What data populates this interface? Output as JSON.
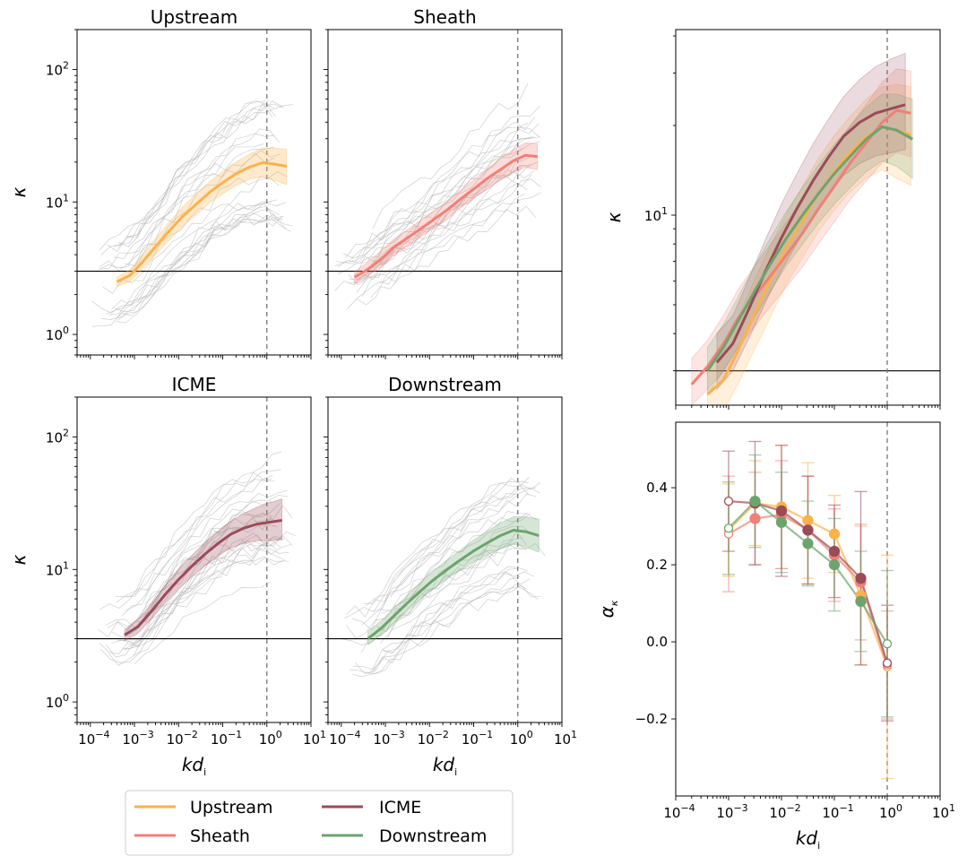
{
  "colors": {
    "Upstream": "#fdb14a",
    "Sheath": "#ef8078",
    "ICME": "#9a4b58",
    "Downstream": "#6ba46c",
    "grid": "#bbbbbb"
  },
  "legend": {
    "entries": [
      "Upstream",
      "Sheath",
      "ICME",
      "Downstream"
    ]
  },
  "chart_data": [
    {
      "type": "line",
      "panel": "top-left",
      "title": "Upstream",
      "ylabel": "κ",
      "xlabel": "",
      "xscale": "log",
      "yscale": "log",
      "xlim": [
        5e-05,
        10
      ],
      "ylim": [
        0.7,
        200
      ],
      "yticks": [
        {
          "v": 1,
          "base": "10",
          "exp": "0"
        },
        {
          "v": 10,
          "base": "10",
          "exp": "1"
        },
        {
          "v": 100,
          "base": "10",
          "exp": "2"
        }
      ],
      "xticks": [],
      "hline": 3,
      "vline": 1,
      "series": [
        {
          "name": "Upstream",
          "x": [
            0.0004,
            0.0008,
            0.0015,
            0.003,
            0.006,
            0.012,
            0.025,
            0.05,
            0.1,
            0.2,
            0.4,
            0.8,
            1.5,
            2.8
          ],
          "y": [
            2.5,
            2.8,
            3.5,
            4.6,
            6.0,
            7.7,
            9.6,
            11.8,
            14.0,
            16.3,
            18.3,
            19.8,
            19.3,
            18.6
          ],
          "band": [
            [
              2.3,
              2.7
            ],
            [
              2.5,
              3.1
            ],
            [
              3.1,
              4.0
            ],
            [
              4.0,
              5.3
            ],
            [
              5.1,
              7.0
            ],
            [
              6.5,
              9.1
            ],
            [
              8.0,
              11.5
            ],
            [
              9.8,
              14.2
            ],
            [
              11.5,
              17
            ],
            [
              13.3,
              20
            ],
            [
              14.8,
              23
            ],
            [
              15.5,
              25.5
            ],
            [
              14.5,
              25.5
            ],
            [
              13.5,
              25
            ]
          ]
        }
      ]
    },
    {
      "type": "line",
      "panel": "top-middle",
      "title": "Sheath",
      "ylabel": "",
      "xlabel": "",
      "xscale": "log",
      "yscale": "log",
      "xlim": [
        5e-05,
        10
      ],
      "ylim": [
        0.7,
        200
      ],
      "yticks": [],
      "xticks": [],
      "hline": 3,
      "vline": 1,
      "series": [
        {
          "name": "Sheath",
          "x": [
            0.0002,
            0.0004,
            0.0008,
            0.0015,
            0.003,
            0.006,
            0.012,
            0.025,
            0.05,
            0.1,
            0.2,
            0.4,
            0.8,
            1.5,
            2.8
          ],
          "y": [
            2.7,
            3.1,
            3.7,
            4.5,
            5.3,
            6.2,
            7.3,
            8.7,
            10.5,
            12.5,
            15.0,
            17.5,
            20.5,
            22.5,
            22.0
          ],
          "band": [
            [
              2.4,
              3.0
            ],
            [
              2.8,
              3.5
            ],
            [
              3.2,
              4.3
            ],
            [
              3.9,
              5.2
            ],
            [
              4.6,
              6.1
            ],
            [
              5.4,
              7.2
            ],
            [
              6.3,
              8.5
            ],
            [
              7.5,
              10.1
            ],
            [
              9.0,
              12.2
            ],
            [
              10.6,
              14.6
            ],
            [
              12.6,
              17.8
            ],
            [
              14.5,
              21
            ],
            [
              16.8,
              25
            ],
            [
              18.2,
              28
            ],
            [
              17.5,
              27.5
            ]
          ]
        }
      ]
    },
    {
      "type": "line",
      "panel": "bottom-left",
      "title": "ICME",
      "ylabel": "κ",
      "xlabel": "kd",
      "xscale": "log",
      "yscale": "log",
      "xlim": [
        5e-05,
        10
      ],
      "ylim": [
        0.7,
        200
      ],
      "yticks": [
        {
          "v": 1,
          "base": "10",
          "exp": "0"
        },
        {
          "v": 10,
          "base": "10",
          "exp": "1"
        },
        {
          "v": 100,
          "base": "10",
          "exp": "2"
        }
      ],
      "xticks": [
        {
          "v": 0.0001,
          "base": "10",
          "exp": "−4"
        },
        {
          "v": 0.001,
          "base": "10",
          "exp": "−3"
        },
        {
          "v": 0.01,
          "base": "10",
          "exp": "−2"
        },
        {
          "v": 0.1,
          "base": "10",
          "exp": "−1"
        },
        {
          "v": 1,
          "base": "10",
          "exp": "0"
        },
        {
          "v": 10,
          "base": "10",
          "exp": "1"
        }
      ],
      "hline": 3,
      "vline": 1,
      "series": [
        {
          "name": "ICME",
          "x": [
            0.0006,
            0.0012,
            0.0025,
            0.005,
            0.01,
            0.02,
            0.04,
            0.08,
            0.15,
            0.3,
            0.6,
            1.2,
            2.2
          ],
          "y": [
            3.2,
            3.7,
            4.9,
            6.5,
            8.4,
            10.6,
            13.1,
            15.8,
            18.4,
            20.5,
            22.0,
            22.8,
            23.5
          ],
          "band": [
            [
              2.9,
              3.5
            ],
            [
              3.3,
              4.2
            ],
            [
              4.3,
              5.6
            ],
            [
              5.6,
              7.6
            ],
            [
              7.1,
              10
            ],
            [
              8.8,
              12.8
            ],
            [
              10.7,
              16
            ],
            [
              12.7,
              19.6
            ],
            [
              14.5,
              23
            ],
            [
              15.8,
              26.5
            ],
            [
              16.5,
              29.5
            ],
            [
              16.5,
              32
            ],
            [
              16.8,
              34
            ]
          ]
        }
      ]
    },
    {
      "type": "line",
      "panel": "bottom-middle",
      "title": "Downstream",
      "ylabel": "",
      "xlabel": "kd",
      "xscale": "log",
      "yscale": "log",
      "xlim": [
        5e-05,
        10
      ],
      "ylim": [
        0.7,
        200
      ],
      "yticks": [],
      "xticks": [
        {
          "v": 0.0001,
          "base": "10",
          "exp": "−4"
        },
        {
          "v": 0.001,
          "base": "10",
          "exp": "−3"
        },
        {
          "v": 0.01,
          "base": "10",
          "exp": "−2"
        },
        {
          "v": 0.1,
          "base": "10",
          "exp": "−1"
        },
        {
          "v": 1,
          "base": "10",
          "exp": "0"
        },
        {
          "v": 10,
          "base": "10",
          "exp": "1"
        }
      ],
      "hline": 3,
      "vline": 1,
      "series": [
        {
          "name": "Downstream",
          "x": [
            0.0004,
            0.0008,
            0.0015,
            0.003,
            0.006,
            0.012,
            0.025,
            0.05,
            0.1,
            0.2,
            0.4,
            0.8,
            1.5,
            3.0
          ],
          "y": [
            3.0,
            3.6,
            4.4,
            5.5,
            6.8,
            8.3,
            10.0,
            11.8,
            13.8,
            15.8,
            18.0,
            19.8,
            19.3,
            18.0
          ],
          "band": [
            [
              2.7,
              3.4
            ],
            [
              3.2,
              4.1
            ],
            [
              3.9,
              5.0
            ],
            [
              4.8,
              6.3
            ],
            [
              5.9,
              7.9
            ],
            [
              7.1,
              9.7
            ],
            [
              8.5,
              11.8
            ],
            [
              9.9,
              14
            ],
            [
              11.4,
              16.7
            ],
            [
              12.8,
              19.4
            ],
            [
              14.4,
              22.4
            ],
            [
              15.5,
              25
            ],
            [
              14.8,
              25
            ],
            [
              13.5,
              24
            ]
          ]
        }
      ]
    },
    {
      "type": "line",
      "panel": "right-top",
      "title": "",
      "ylabel": "κ",
      "xlabel": "",
      "xscale": "log",
      "yscale": "log",
      "xlim": [
        0.0001,
        10
      ],
      "ylim": [
        2.3,
        42
      ],
      "yticks": [
        {
          "v": 10,
          "base": "10",
          "exp": "1"
        }
      ],
      "xticks": [],
      "hline": 3,
      "vline": 1,
      "series": [
        {
          "name": "Upstream",
          "x": [
            0.0004,
            0.0008,
            0.0015,
            0.003,
            0.006,
            0.012,
            0.025,
            0.05,
            0.1,
            0.2,
            0.4,
            0.8,
            1.5,
            2.8
          ],
          "y": [
            2.5,
            2.8,
            3.5,
            4.6,
            6.0,
            7.7,
            9.6,
            11.8,
            14.0,
            16.3,
            18.3,
            19.8,
            19.3,
            18.6
          ],
          "band": [
            [
              2.0,
              3.1
            ],
            [
              2.2,
              3.5
            ],
            [
              2.7,
              4.5
            ],
            [
              3.5,
              6.0
            ],
            [
              4.5,
              7.8
            ],
            [
              5.8,
              10
            ],
            [
              7.2,
              12.5
            ],
            [
              8.8,
              15.5
            ],
            [
              10.4,
              18.5
            ],
            [
              12,
              21.5
            ],
            [
              13.3,
              24.5
            ],
            [
              14.2,
              27
            ],
            [
              13.3,
              27.5
            ],
            [
              12.6,
              27
            ]
          ]
        },
        {
          "name": "Sheath",
          "x": [
            0.0002,
            0.0004,
            0.0008,
            0.0015,
            0.003,
            0.006,
            0.012,
            0.025,
            0.05,
            0.1,
            0.2,
            0.4,
            0.8,
            1.5,
            2.8
          ],
          "y": [
            2.7,
            3.1,
            3.7,
            4.5,
            5.3,
            6.2,
            7.3,
            8.7,
            10.5,
            12.5,
            15.0,
            17.5,
            20.5,
            22.5,
            22.0
          ],
          "band": [
            [
              2.3,
              3.3
            ],
            [
              2.6,
              3.8
            ],
            [
              3.0,
              4.6
            ],
            [
              3.6,
              5.6
            ],
            [
              4.2,
              6.7
            ],
            [
              4.9,
              7.9
            ],
            [
              5.7,
              9.4
            ],
            [
              6.7,
              11.3
            ],
            [
              8.0,
              13.8
            ],
            [
              9.5,
              16.5
            ],
            [
              11.3,
              20
            ],
            [
              13,
              23.5
            ],
            [
              15,
              28
            ],
            [
              16.2,
              31
            ],
            [
              15.7,
              30.5
            ]
          ]
        },
        {
          "name": "ICME",
          "x": [
            0.0006,
            0.0012,
            0.0025,
            0.005,
            0.01,
            0.02,
            0.04,
            0.08,
            0.15,
            0.3,
            0.6,
            1.2,
            2.2
          ],
          "y": [
            3.2,
            3.7,
            4.9,
            6.5,
            8.4,
            10.6,
            13.1,
            15.8,
            18.4,
            20.5,
            22.0,
            22.8,
            23.5
          ],
          "band": [
            [
              2.6,
              4.0
            ],
            [
              3.0,
              4.6
            ],
            [
              3.9,
              6.2
            ],
            [
              5.1,
              8.3
            ],
            [
              6.5,
              10.9
            ],
            [
              8.1,
              13.9
            ],
            [
              9.9,
              17.4
            ],
            [
              11.8,
              21.2
            ],
            [
              13.6,
              25
            ],
            [
              14.9,
              28.5
            ],
            [
              15.8,
              31.5
            ],
            [
              16.2,
              33.5
            ],
            [
              16.6,
              35
            ]
          ]
        },
        {
          "name": "Downstream",
          "x": [
            0.0004,
            0.0008,
            0.0015,
            0.003,
            0.006,
            0.012,
            0.025,
            0.05,
            0.1,
            0.2,
            0.4,
            0.8,
            1.5,
            3.0
          ],
          "y": [
            3.0,
            3.6,
            4.4,
            5.5,
            6.8,
            8.3,
            10.0,
            11.8,
            13.8,
            15.8,
            18.0,
            19.8,
            19.3,
            18.0
          ],
          "band": [
            [
              2.5,
              3.6
            ],
            [
              3.0,
              4.3
            ],
            [
              3.6,
              5.3
            ],
            [
              4.5,
              6.7
            ],
            [
              5.5,
              8.3
            ],
            [
              6.7,
              10.2
            ],
            [
              8.0,
              12.4
            ],
            [
              9.4,
              14.7
            ],
            [
              10.9,
              17.3
            ],
            [
              12.4,
              19.9
            ],
            [
              14,
              23
            ],
            [
              15.2,
              25.5
            ],
            [
              14.6,
              25.5
            ],
            [
              13.3,
              24.5
            ]
          ]
        }
      ]
    },
    {
      "type": "line",
      "panel": "right-bottom",
      "title": "",
      "ylabel": "α",
      "xlabel": "kd",
      "xscale": "log",
      "yscale": "linear",
      "xlim": [
        0.0001,
        10
      ],
      "ylim": [
        -0.4,
        0.57
      ],
      "yticks": [
        {
          "v": -0.2,
          "label": "−0.2"
        },
        {
          "v": 0.0,
          "label": "0.0"
        },
        {
          "v": 0.2,
          "label": "0.2"
        },
        {
          "v": 0.4,
          "label": "0.4"
        }
      ],
      "xticks": [
        {
          "v": 0.0001,
          "base": "10",
          "exp": "−4"
        },
        {
          "v": 0.001,
          "base": "10",
          "exp": "−3"
        },
        {
          "v": 0.01,
          "base": "10",
          "exp": "−2"
        },
        {
          "v": 0.1,
          "base": "10",
          "exp": "−1"
        },
        {
          "v": 1,
          "base": "10",
          "exp": "0"
        },
        {
          "v": 10,
          "base": "10",
          "exp": "1"
        }
      ],
      "hline": null,
      "vline": 1,
      "x": [
        0.001,
        0.00316,
        0.01,
        0.0316,
        0.1,
        0.316,
        1.0
      ],
      "filled": [
        false,
        true,
        true,
        true,
        true,
        true,
        false
      ],
      "series": [
        {
          "name": "Upstream",
          "y": [
            0.29,
            0.36,
            0.35,
            0.315,
            0.28,
            0.12,
            -0.065
          ],
          "err": [
            0.12,
            0.11,
            0.16,
            0.15,
            0.1,
            0.18,
            0.29
          ]
        },
        {
          "name": "Sheath",
          "y": [
            0.28,
            0.32,
            0.33,
            0.29,
            0.225,
            0.155,
            -0.06
          ],
          "err": [
            0.15,
            0.12,
            0.14,
            0.14,
            0.12,
            0.15,
            0.14
          ]
        },
        {
          "name": "ICME",
          "y": [
            0.365,
            0.36,
            0.34,
            0.29,
            0.235,
            0.165,
            -0.055
          ],
          "err": [
            0.13,
            0.16,
            0.17,
            0.14,
            0.12,
            0.225,
            0.15
          ]
        },
        {
          "name": "Downstream",
          "y": [
            0.295,
            0.365,
            0.31,
            0.255,
            0.2,
            0.105,
            -0.005
          ],
          "err": [
            0.12,
            0.12,
            0.13,
            0.11,
            0.12,
            0.13,
            0.19
          ]
        }
      ]
    }
  ]
}
